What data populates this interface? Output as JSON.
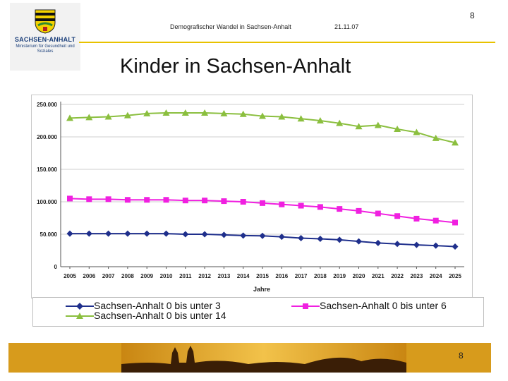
{
  "logo": {
    "name": "SACHSEN-ANHALT",
    "subtitle": "Ministerium für Gesundheit und Soziales"
  },
  "header": {
    "subtitle": "Demografischer Wandel in Sachsen-Anhalt",
    "date": "21.11.07",
    "page_number": "8"
  },
  "title": "Kinder in Sachsen-Anhalt",
  "footer": {
    "page_number": "8"
  },
  "colors": {
    "accent_yellow": "#e8c200",
    "footer_orange": "#d79b1c"
  },
  "chart_data": {
    "type": "line",
    "title": "Kinder in Sachsen-Anhalt",
    "xlabel": "Jahre",
    "ylabel": "",
    "ylim": [
      0,
      250000
    ],
    "y_ticks": [
      0,
      50000,
      100000,
      150000,
      200000,
      250000
    ],
    "y_tick_labels": [
      "0",
      "50.000",
      "100.000",
      "150.000",
      "200.000",
      "250.000"
    ],
    "categories": [
      "2005",
      "2006",
      "2007",
      "2008",
      "2009",
      "2010",
      "2011",
      "2012",
      "2013",
      "2014",
      "2015",
      "2016",
      "2017",
      "2018",
      "2019",
      "2020",
      "2021",
      "2022",
      "2023",
      "2024",
      "2025"
    ],
    "legend_position": "bottom",
    "series": [
      {
        "name": "Sachsen-Anhalt 0 bis unter 3",
        "color": "#1f2f8c",
        "marker": "diamond",
        "values": [
          51000,
          51000,
          51000,
          51000,
          51000,
          51000,
          50000,
          50000,
          49000,
          48000,
          47500,
          46000,
          44000,
          43000,
          41500,
          39000,
          36500,
          35000,
          33500,
          32500,
          31000
        ]
      },
      {
        "name": "Sachsen-Anhalt 0 bis unter 6",
        "color": "#f020e0",
        "marker": "square",
        "values": [
          105000,
          104000,
          104000,
          103000,
          103000,
          103000,
          102000,
          102000,
          101000,
          100000,
          98000,
          96000,
          94000,
          92000,
          89000,
          86000,
          82000,
          78000,
          74000,
          71000,
          68000
        ]
      },
      {
        "name": "Sachsen-Anhalt 0 bis unter 14",
        "color": "#8bbf3f",
        "marker": "triangle",
        "values": [
          229000,
          230000,
          231000,
          233000,
          236000,
          237000,
          237000,
          237000,
          236000,
          235000,
          232000,
          231000,
          228000,
          225000,
          221000,
          216000,
          218000,
          212000,
          207000,
          198000,
          191000
        ]
      }
    ]
  }
}
